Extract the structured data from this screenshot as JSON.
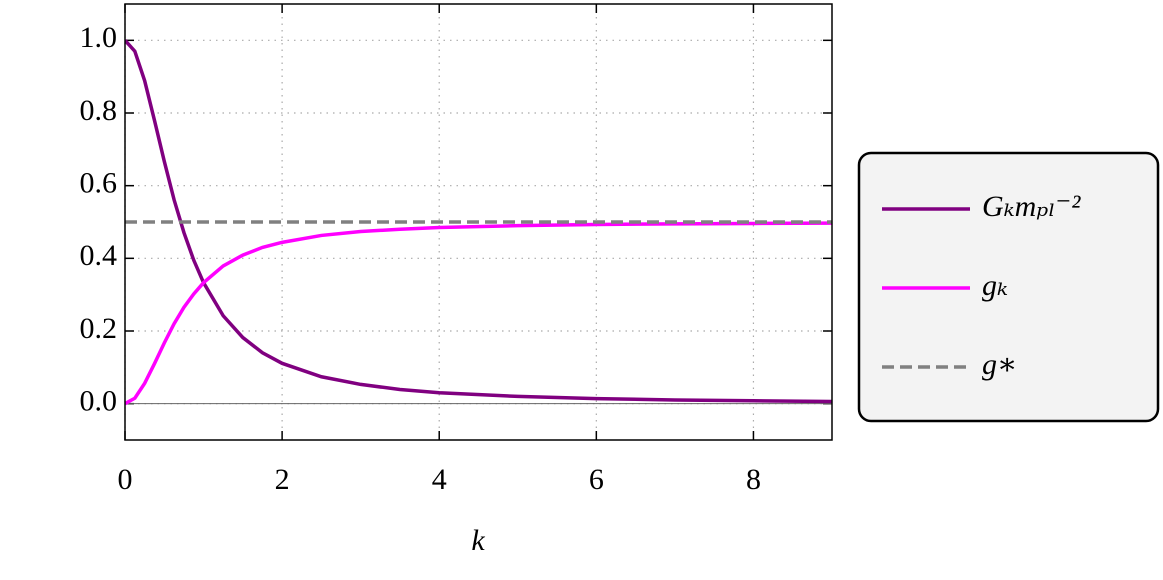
{
  "chart_data": {
    "type": "line",
    "xlabel": "k",
    "xlim": [
      0,
      9
    ],
    "ylim": [
      -0.1,
      1.1
    ],
    "xticks": [
      0,
      2,
      4,
      6,
      8
    ],
    "yticks": [
      {
        "value": 0,
        "label": "0.0"
      },
      {
        "value": 0.2,
        "label": "0.2"
      },
      {
        "value": 0.4,
        "label": "0.4"
      },
      {
        "value": 0.6,
        "label": "0.6"
      },
      {
        "value": 0.8,
        "label": "0.8"
      },
      {
        "value": 1,
        "label": "1.0"
      }
    ],
    "grid": true,
    "hline": 0,
    "legend": "right",
    "series": [
      {
        "name": "Gₖmₚₗ⁻²",
        "color": "#800080",
        "style": "solid",
        "x": [
          0,
          0.125,
          0.25,
          0.375,
          0.5,
          0.625,
          0.75,
          0.875,
          1,
          1.25,
          1.5,
          1.75,
          2,
          2.5,
          3,
          3.5,
          4,
          5,
          6,
          7,
          8,
          9
        ],
        "values": [
          1,
          0.97,
          0.889,
          0.78,
          0.667,
          0.561,
          0.471,
          0.395,
          0.333,
          0.242,
          0.182,
          0.14,
          0.111,
          0.074,
          0.053,
          0.039,
          0.03,
          0.02,
          0.014,
          0.01,
          0.008,
          0.006
        ]
      },
      {
        "name": "gₖ",
        "color": "#ff00ff",
        "style": "solid",
        "x": [
          0,
          0.125,
          0.25,
          0.375,
          0.5,
          0.625,
          0.75,
          0.875,
          1,
          1.25,
          1.5,
          1.75,
          2,
          2.5,
          3,
          3.5,
          4,
          5,
          6,
          7,
          8,
          9
        ],
        "values": [
          0,
          0.015,
          0.056,
          0.11,
          0.167,
          0.22,
          0.265,
          0.302,
          0.333,
          0.379,
          0.409,
          0.43,
          0.444,
          0.463,
          0.474,
          0.48,
          0.485,
          0.49,
          0.493,
          0.495,
          0.496,
          0.497
        ]
      },
      {
        "name": "g∗",
        "color": "#808080",
        "style": "dashed",
        "x": [
          0,
          9
        ],
        "values": [
          0.5,
          0.5
        ]
      }
    ]
  }
}
